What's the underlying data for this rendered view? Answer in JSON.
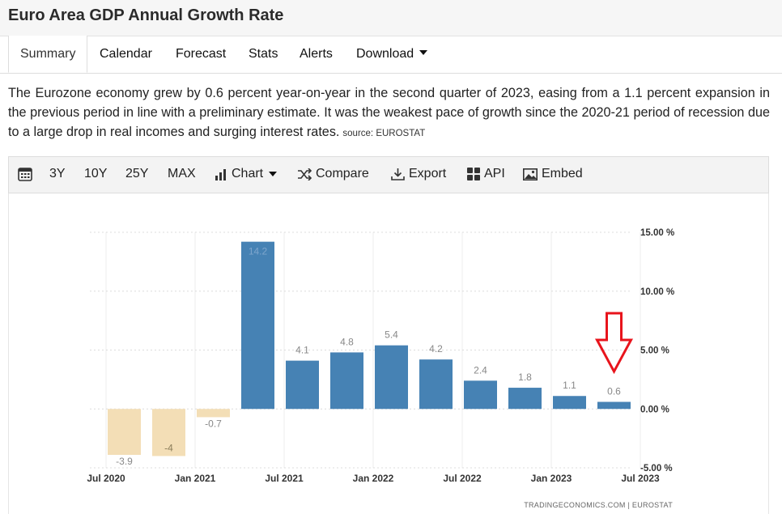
{
  "page": {
    "title": "Euro Area GDP Annual Growth Rate",
    "tabs": [
      "Summary",
      "Calendar",
      "Forecast",
      "Stats",
      "Alerts",
      "Download"
    ],
    "description": "The Eurozone economy grew by 0.6 percent year-on-year in the second quarter of 2023, easing from a 1.1 percent expansion in the previous period in line with a preliminary estimate. It was the weakest pace of growth since the 2020-21 period of recession due to a large drop in real incomes and surging interest rates.",
    "source_label": "source: EUROSTAT"
  },
  "toolbar": {
    "ranges": [
      "3Y",
      "10Y",
      "25Y",
      "MAX"
    ],
    "chart_label": "Chart",
    "compare_label": "Compare",
    "export_label": "Export",
    "api_label": "API",
    "embed_label": "Embed"
  },
  "chart_data": {
    "type": "bar",
    "categories": [
      "Q3 2020",
      "Q4 2020",
      "Q1 2021",
      "Q2 2021",
      "Q3 2021",
      "Q4 2021",
      "Q1 2022",
      "Q2 2022",
      "Q3 2022",
      "Q4 2022",
      "Q1 2023",
      "Q2 2023"
    ],
    "values": [
      -3.9,
      -4,
      -0.7,
      14.2,
      4.1,
      4.8,
      5.4,
      4.2,
      2.4,
      1.8,
      1.1,
      0.6
    ],
    "value_labels": [
      "-3.9",
      "-4",
      "-0.7",
      "14.2",
      "4.1",
      "4.8",
      "5.4",
      "4.2",
      "2.4",
      "1.8",
      "1.1",
      "0.6"
    ],
    "x_tick_labels": [
      "Jul 2020",
      "Jan 2021",
      "Jul 2021",
      "Jan 2022",
      "Jul 2022",
      "Jan 2023",
      "Jul 2023"
    ],
    "y_tick_labels": [
      "15.00 %",
      "10.00 %",
      "5.00 %",
      "0.00 %",
      "-5.00 %"
    ],
    "y_ticks": [
      15,
      10,
      5,
      0,
      -5
    ],
    "ylim": [
      -5,
      15
    ],
    "grid": true,
    "colors": {
      "positive": "#4682b4",
      "negative": "#f3deb6",
      "arrow": "#e8141c"
    },
    "annotation": "red down arrow over latest value",
    "credit": "TRADINGECONOMICS.COM  |  EUROSTAT"
  }
}
